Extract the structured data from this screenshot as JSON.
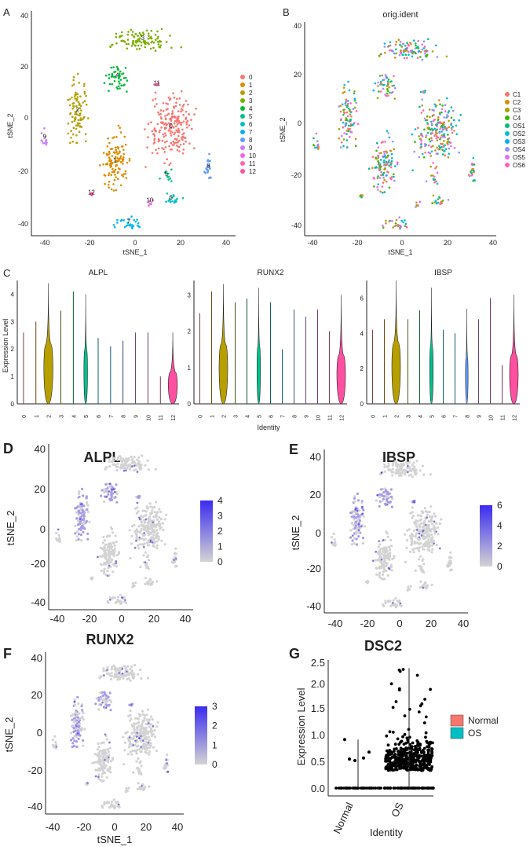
{
  "panels": {
    "A": {
      "letter": "A",
      "xlabel": "tSNE_1",
      "ylabel": "tSNE_2",
      "xticks": [
        "-40",
        "-20",
        "0",
        "20",
        "40"
      ],
      "yticks": [
        "40",
        "20",
        "0",
        "-20",
        "-40"
      ]
    },
    "B": {
      "letter": "B",
      "title": "orig.ident",
      "xlabel": "tSNE_1",
      "ylabel": "tSNE_2",
      "xticks": [
        "-40",
        "-20",
        "0",
        "20",
        "40"
      ],
      "yticks": [
        "40",
        "20",
        "0",
        "-20",
        "-40"
      ]
    },
    "C": {
      "letter": "C",
      "ylabel": "Expression Level",
      "xlabel": "Identity"
    },
    "D": {
      "letter": "D",
      "title": "ALPL",
      "ylabel": "tSNE_2",
      "xticks": [
        "-40",
        "-20",
        "0",
        "20",
        "40"
      ],
      "yticks": [
        "40",
        "20",
        "0",
        "-20",
        "-40"
      ],
      "legend": [
        "4",
        "3",
        "2",
        "1",
        "0"
      ]
    },
    "E": {
      "letter": "E",
      "title": "IBSP",
      "ylabel": "tSNE_2",
      "xticks": [
        "-40",
        "-20",
        "0",
        "20",
        "40"
      ],
      "yticks": [
        "40",
        "20",
        "0",
        "-20",
        "-40"
      ],
      "legend": [
        "6",
        "4",
        "2",
        "0"
      ]
    },
    "F": {
      "letter": "F",
      "title": "RUNX2",
      "xlabel": "tSNE_1",
      "ylabel": "tSNE_2",
      "xticks": [
        "-40",
        "-20",
        "0",
        "20",
        "40"
      ],
      "yticks": [
        "40",
        "20",
        "0",
        "-20",
        "-40"
      ],
      "legend": [
        "3",
        "2",
        "1",
        "0"
      ]
    },
    "G": {
      "letter": "G",
      "title": "DSC2",
      "ylabel": "Expression Level",
      "xlabel": "Identity",
      "yticks": [
        "2.5",
        "2.0",
        "1.5",
        "1.0",
        "0.5",
        "0.0"
      ],
      "categories": [
        "Normal",
        "OS"
      ]
    }
  },
  "chart_data": [
    {
      "type": "scatter",
      "panel": "A",
      "xlabel": "tSNE_1",
      "ylabel": "tSNE_2",
      "xlim": [
        -42,
        42
      ],
      "ylim": [
        -42,
        42
      ],
      "legend_title": "",
      "clusters": [
        {
          "name": "0",
          "color": "#F8766D",
          "center": [
            16,
            -2
          ],
          "spread": [
            13,
            17
          ]
        },
        {
          "name": "1",
          "color": "#DE8C00",
          "center": [
            -8,
            -15
          ],
          "spread": [
            8,
            16
          ]
        },
        {
          "name": "2",
          "color": "#B79F00",
          "center": [
            -24,
            4
          ],
          "spread": [
            6,
            17
          ]
        },
        {
          "name": "3",
          "color": "#7CAE00",
          "center": [
            4,
            31
          ],
          "spread": [
            18,
            6
          ]
        },
        {
          "name": "4",
          "color": "#00BA38",
          "center": [
            -7,
            17
          ],
          "spread": [
            7,
            7
          ]
        },
        {
          "name": "5",
          "color": "#00C08B",
          "center": [
            14,
            -20
          ],
          "spread": [
            4,
            3
          ]
        },
        {
          "name": "6",
          "color": "#00BFC4",
          "center": [
            16,
            -29
          ],
          "spread": [
            6,
            3
          ]
        },
        {
          "name": "7",
          "color": "#00B4F0",
          "center": [
            -2,
            -38
          ],
          "spread": [
            10,
            3
          ]
        },
        {
          "name": "8",
          "color": "#619CFF",
          "center": [
            32,
            -17
          ],
          "spread": [
            3,
            8
          ]
        },
        {
          "name": "9",
          "color": "#C77CFF",
          "center": [
            -38,
            -6
          ],
          "spread": [
            2,
            6
          ]
        },
        {
          "name": "10",
          "color": "#F564E3",
          "center": [
            7,
            -30
          ],
          "spread": [
            2,
            3
          ]
        },
        {
          "name": "11",
          "color": "#FF64B0",
          "center": [
            10,
            14
          ],
          "spread": [
            2,
            2
          ]
        },
        {
          "name": "12",
          "color": "#FF4FA0",
          "center": [
            -18,
            -27
          ],
          "spread": [
            1,
            1
          ]
        }
      ]
    },
    {
      "type": "scatter",
      "panel": "B",
      "title": "orig.ident",
      "xlabel": "tSNE_1",
      "ylabel": "tSNE_2",
      "xlim": [
        -42,
        42
      ],
      "ylim": [
        -42,
        42
      ],
      "groups": [
        {
          "name": "C1",
          "color": "#F8766D"
        },
        {
          "name": "C2",
          "color": "#D89000"
        },
        {
          "name": "C3",
          "color": "#A3A500"
        },
        {
          "name": "C4",
          "color": "#39B600"
        },
        {
          "name": "OS1",
          "color": "#00BF7D"
        },
        {
          "name": "OS2",
          "color": "#00BFC4"
        },
        {
          "name": "OS3",
          "color": "#00B0F6"
        },
        {
          "name": "OS4",
          "color": "#9590FF"
        },
        {
          "name": "OS5",
          "color": "#E76BF3"
        },
        {
          "name": "OS6",
          "color": "#FF62BC"
        }
      ]
    },
    {
      "type": "violin",
      "panel": "C",
      "ylabel": "Expression Level",
      "xlabel": "Identity",
      "categories": [
        "0",
        "1",
        "2",
        "3",
        "4",
        "5",
        "6",
        "7",
        "8",
        "9",
        "10",
        "11",
        "12"
      ],
      "colors": [
        "#F8766D",
        "#DE8C00",
        "#B79F00",
        "#7CAE00",
        "#00BA38",
        "#00C08B",
        "#00BFC4",
        "#00B4F0",
        "#619CFF",
        "#C77CFF",
        "#F564E3",
        "#FF64B0",
        "#FF4FA0"
      ],
      "genes": [
        {
          "name": "ALPL",
          "ylim": [
            0,
            4.5
          ],
          "yticks": [
            "0",
            "1",
            "2",
            "3",
            "4"
          ],
          "max": [
            2.6,
            3.0,
            4.4,
            3.4,
            4.1,
            4.0,
            2.4,
            2.1,
            2.3,
            2.6,
            2.6,
            1.0,
            2.6
          ],
          "body": [
            0,
            0,
            1,
            0,
            0,
            0.4,
            0,
            0,
            0,
            0,
            0,
            0,
            1
          ]
        },
        {
          "name": "RUNX2",
          "ylim": [
            0,
            3.4
          ],
          "yticks": [
            "0",
            "1",
            "2",
            "3"
          ],
          "max": [
            2.5,
            3.1,
            3.3,
            2.8,
            2.9,
            3.2,
            2.8,
            1.5,
            2.6,
            2.4,
            2.6,
            2.0,
            3.0
          ],
          "body": [
            0,
            0,
            1,
            0,
            0,
            0.4,
            0,
            0,
            0,
            0,
            0,
            0,
            1
          ]
        },
        {
          "name": "IBSP",
          "ylim": [
            0,
            7
          ],
          "yticks": [
            "0",
            "2",
            "4",
            "6"
          ],
          "max": [
            4.2,
            4.8,
            7.0,
            4.8,
            5.3,
            6.6,
            4.2,
            4.0,
            5.4,
            4.8,
            6.0,
            2.2,
            6.2
          ],
          "body": [
            0,
            0,
            1,
            0,
            0,
            0.4,
            0,
            0,
            0.3,
            0,
            0,
            0,
            1
          ]
        }
      ]
    },
    {
      "type": "scatter",
      "panel": "D",
      "title": "ALPL",
      "ylabel": "tSNE_2",
      "xlim": [
        -42,
        42
      ],
      "ylim": [
        -42,
        42
      ],
      "scale": [
        0,
        4
      ],
      "high_color": "#3b2cf0",
      "low_color": "#d3d3d3"
    },
    {
      "type": "scatter",
      "panel": "E",
      "title": "IBSP",
      "ylabel": "tSNE_2",
      "xlim": [
        -42,
        42
      ],
      "ylim": [
        -42,
        42
      ],
      "scale": [
        0,
        6
      ],
      "high_color": "#3b2cf0",
      "low_color": "#d3d3d3"
    },
    {
      "type": "scatter",
      "panel": "F",
      "title": "RUNX2",
      "xlabel": "tSNE_1",
      "ylabel": "tSNE_2",
      "xlim": [
        -42,
        42
      ],
      "ylim": [
        -42,
        42
      ],
      "scale": [
        0,
        3
      ],
      "high_color": "#3b2cf0",
      "low_color": "#d3d3d3"
    },
    {
      "type": "scatter",
      "panel": "G",
      "title": "DSC2",
      "xlabel": "Identity",
      "ylabel": "Expression Level",
      "categories": [
        "Normal",
        "OS"
      ],
      "ylim": [
        0,
        2.5
      ],
      "legend": [
        {
          "name": "Normal",
          "color": "#F8766D"
        },
        {
          "name": "OS",
          "color": "#00BFC4"
        }
      ],
      "normal_max": 0.97,
      "os_max": 2.4
    }
  ]
}
